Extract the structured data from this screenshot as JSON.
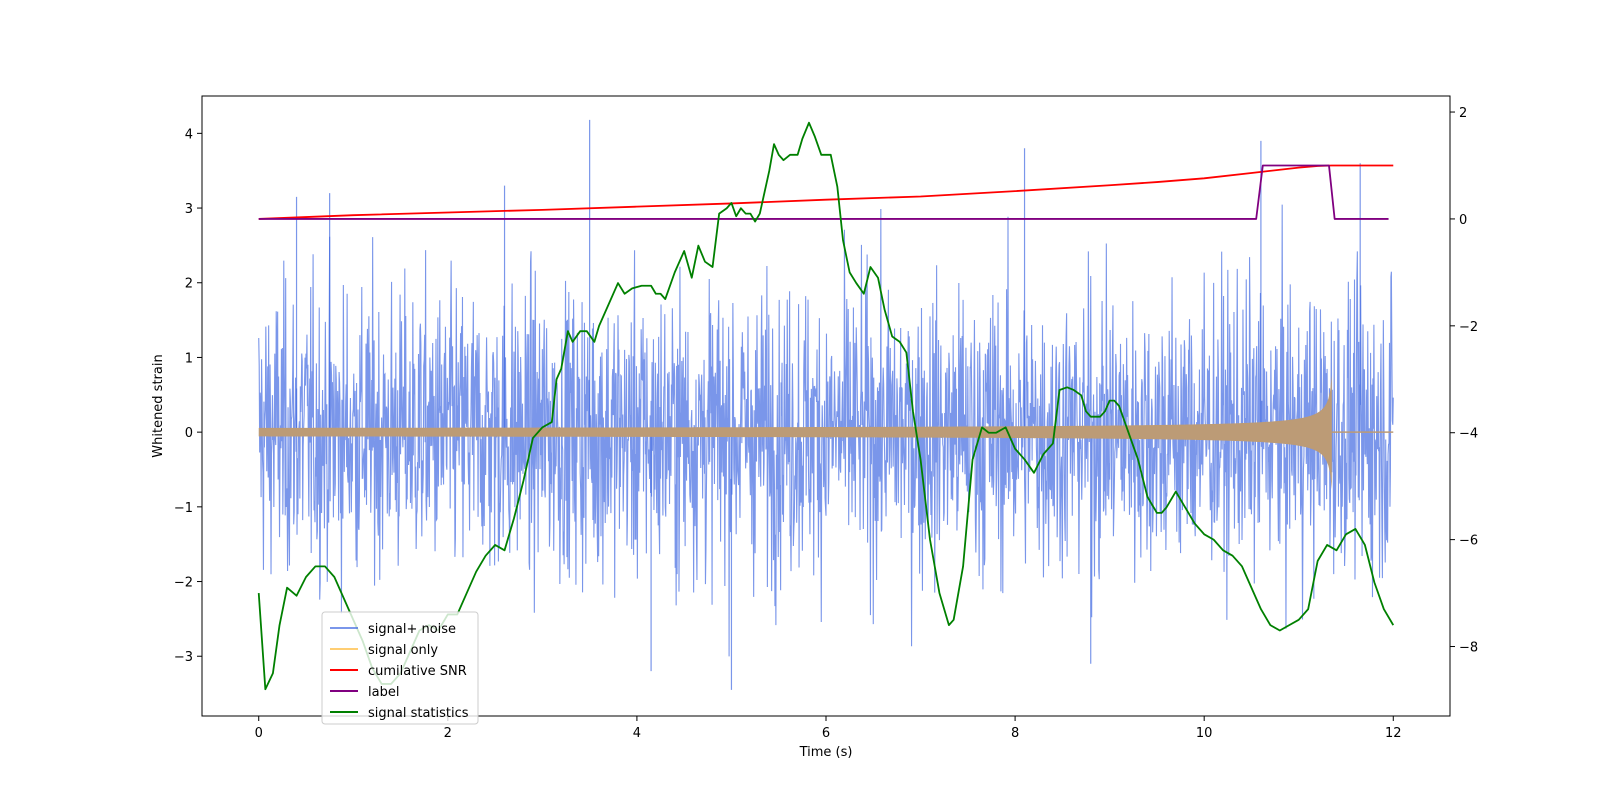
{
  "chart_data": {
    "type": "line",
    "title": "",
    "xlabel": "Time (s)",
    "ylabel": "Whitened strain",
    "y2label": "",
    "xlim": [
      -0.6,
      12.6
    ],
    "ylim": [
      -3.8,
      4.5
    ],
    "y2lim": [
      -9.3,
      2.3
    ],
    "xticks": [
      0,
      2,
      4,
      6,
      8,
      10,
      12
    ],
    "xtick_labels": [
      "0",
      "2",
      "4",
      "6",
      "8",
      "10",
      "12"
    ],
    "yticks": [
      -3,
      -2,
      -1,
      0,
      1,
      2,
      3,
      4
    ],
    "ytick_labels": [
      "−3",
      "−2",
      "−1",
      "0",
      "1",
      "2",
      "3",
      "4"
    ],
    "y2ticks": [
      -8,
      -6,
      -4,
      -2,
      0,
      2
    ],
    "y2tick_labels": [
      "−8",
      "−6",
      "−4",
      "−2",
      "0",
      "2"
    ],
    "grid": false,
    "legend_position": "lower-left",
    "series": [
      {
        "name": "signal+ noise",
        "axis": "left",
        "color": "#4169E1",
        "kind": "noise",
        "x_range": [
          0,
          12
        ],
        "approx_std": 1.0,
        "approx_min": -3.45,
        "approx_max": 4.18
      },
      {
        "name": "signal only",
        "axis": "left",
        "color": "#FFA500",
        "kind": "chirp",
        "x_range": [
          0,
          12
        ],
        "merger_time": 11.35,
        "peak_amplitude": 0.8
      },
      {
        "name": "cumilative SNR",
        "axis": "right",
        "color": "#FF0000",
        "kind": "line",
        "x": [
          0,
          1,
          2,
          3,
          4,
          5,
          6,
          7,
          8,
          9,
          9.5,
          10,
          10.5,
          10.8,
          11.0,
          11.2,
          11.35,
          12
        ],
        "y": [
          0,
          0.07,
          0.12,
          0.17,
          0.23,
          0.29,
          0.36,
          0.42,
          0.52,
          0.63,
          0.69,
          0.76,
          0.86,
          0.92,
          0.96,
          0.99,
          1.0,
          1.0
        ]
      },
      {
        "name": "label",
        "axis": "right",
        "color": "#800080",
        "kind": "line",
        "x": [
          0,
          10.55,
          10.62,
          11.32,
          11.38,
          11.95
        ],
        "y": [
          0,
          0,
          1,
          1,
          0,
          0
        ]
      },
      {
        "name": "signal statistics",
        "axis": "right",
        "color": "#008000",
        "kind": "line",
        "x": [
          0,
          0.07,
          0.15,
          0.22,
          0.3,
          0.4,
          0.5,
          0.6,
          0.7,
          0.8,
          0.9,
          1.0,
          1.1,
          1.2,
          1.3,
          1.4,
          1.5,
          1.6,
          1.7,
          1.8,
          1.9,
          2.0,
          2.1,
          2.2,
          2.3,
          2.4,
          2.5,
          2.6,
          2.7,
          2.8,
          2.9,
          3.0,
          3.1,
          3.15,
          3.2,
          3.27,
          3.32,
          3.4,
          3.47,
          3.55,
          3.6,
          3.7,
          3.8,
          3.87,
          3.95,
          4.05,
          4.15,
          4.2,
          4.25,
          4.3,
          4.4,
          4.5,
          4.58,
          4.65,
          4.72,
          4.8,
          4.87,
          4.95,
          5.0,
          5.05,
          5.1,
          5.15,
          5.2,
          5.25,
          5.3,
          5.4,
          5.45,
          5.5,
          5.55,
          5.62,
          5.7,
          5.75,
          5.82,
          5.88,
          5.95,
          6.05,
          6.12,
          6.18,
          6.25,
          6.32,
          6.4,
          6.47,
          6.55,
          6.62,
          6.7,
          6.78,
          6.85,
          6.92,
          7.0,
          7.1,
          7.2,
          7.3,
          7.35,
          7.45,
          7.55,
          7.65,
          7.72,
          7.8,
          7.9,
          8.0,
          8.1,
          8.2,
          8.3,
          8.4,
          8.47,
          8.55,
          8.62,
          8.7,
          8.75,
          8.8,
          8.9,
          8.95,
          9.0,
          9.05,
          9.1,
          9.2,
          9.3,
          9.4,
          9.5,
          9.55,
          9.6,
          9.7,
          9.8,
          9.9,
          10.0,
          10.1,
          10.2,
          10.3,
          10.4,
          10.5,
          10.6,
          10.7,
          10.8,
          10.9,
          11.0,
          11.1,
          11.2,
          11.3,
          11.4,
          11.5,
          11.6,
          11.7,
          11.8,
          11.9,
          12.0
        ],
        "y": [
          -7.0,
          -8.8,
          -8.5,
          -7.6,
          -6.9,
          -7.05,
          -6.7,
          -6.5,
          -6.5,
          -6.7,
          -7.1,
          -7.5,
          -7.9,
          -8.4,
          -8.7,
          -8.7,
          -8.5,
          -8.1,
          -7.7,
          -7.6,
          -7.7,
          -7.4,
          -7.4,
          -7.0,
          -6.6,
          -6.3,
          -6.1,
          -6.2,
          -5.6,
          -4.9,
          -4.1,
          -3.9,
          -3.8,
          -3.0,
          -2.8,
          -2.1,
          -2.3,
          -2.1,
          -2.1,
          -2.3,
          -2.0,
          -1.6,
          -1.2,
          -1.4,
          -1.3,
          -1.25,
          -1.25,
          -1.4,
          -1.4,
          -1.5,
          -1.0,
          -0.6,
          -1.1,
          -0.5,
          -0.8,
          -0.9,
          0.1,
          0.2,
          0.3,
          0.05,
          0.2,
          0.1,
          0.1,
          -0.05,
          0.1,
          0.9,
          1.4,
          1.2,
          1.1,
          1.2,
          1.2,
          1.5,
          1.8,
          1.55,
          1.2,
          1.2,
          0.6,
          -0.4,
          -1.0,
          -1.2,
          -1.4,
          -0.9,
          -1.1,
          -1.7,
          -2.2,
          -2.3,
          -2.5,
          -3.6,
          -4.5,
          -6.0,
          -7.0,
          -7.6,
          -7.5,
          -6.5,
          -4.5,
          -3.9,
          -4.0,
          -4.0,
          -3.9,
          -4.3,
          -4.5,
          -4.75,
          -4.4,
          -4.2,
          -3.2,
          -3.15,
          -3.2,
          -3.3,
          -3.6,
          -3.7,
          -3.7,
          -3.6,
          -3.4,
          -3.4,
          -3.5,
          -4.0,
          -4.5,
          -5.2,
          -5.5,
          -5.5,
          -5.4,
          -5.1,
          -5.4,
          -5.7,
          -5.9,
          -6.0,
          -6.2,
          -6.3,
          -6.5,
          -6.9,
          -7.3,
          -7.6,
          -7.7,
          -7.6,
          -7.5,
          -7.3,
          -6.4,
          -6.1,
          -6.2,
          -5.9,
          -5.8,
          -6.1,
          -6.8,
          -7.3,
          -7.6
        ]
      }
    ]
  }
}
